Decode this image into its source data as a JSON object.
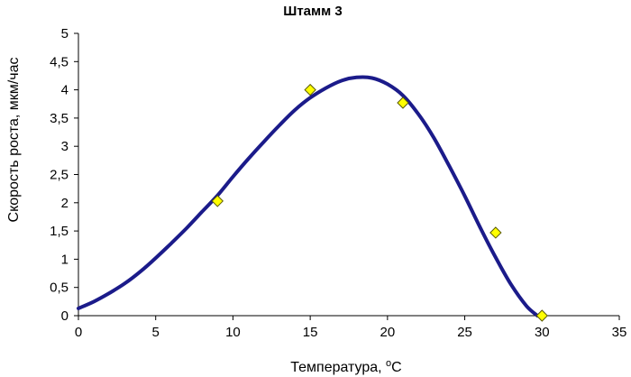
{
  "chart_data": {
    "type": "scatter",
    "title": "Штамм 3",
    "xlabel": "Температура, ",
    "xlabel_sup": "о",
    "xlabel_suffix": "С",
    "ylabel": "Скорость роста, мкм/час",
    "xlim": [
      0,
      35
    ],
    "ylim": [
      0,
      5
    ],
    "x_ticks": [
      {
        "value": 0,
        "label": "0"
      },
      {
        "value": 5,
        "label": "5"
      },
      {
        "value": 10,
        "label": "10"
      },
      {
        "value": 15,
        "label": "15"
      },
      {
        "value": 20,
        "label": "20"
      },
      {
        "value": 25,
        "label": "25"
      },
      {
        "value": 30,
        "label": "30"
      },
      {
        "value": 35,
        "label": "35"
      }
    ],
    "y_ticks": [
      {
        "value": 0,
        "label": "0"
      },
      {
        "value": 0.5,
        "label": "0,5"
      },
      {
        "value": 1,
        "label": "1"
      },
      {
        "value": 1.5,
        "label": "1,5"
      },
      {
        "value": 2,
        "label": "2"
      },
      {
        "value": 2.5,
        "label": "2,5"
      },
      {
        "value": 3,
        "label": "3"
      },
      {
        "value": 3.5,
        "label": "3,5"
      },
      {
        "value": 4,
        "label": "4"
      },
      {
        "value": 4.5,
        "label": "4,5"
      },
      {
        "value": 5,
        "label": "5"
      }
    ],
    "grid": false,
    "legend": "none",
    "points": [
      {
        "x": 9,
        "y": 2.03
      },
      {
        "x": 15,
        "y": 4.0
      },
      {
        "x": 21,
        "y": 3.77
      },
      {
        "x": 27,
        "y": 1.47
      },
      {
        "x": 30,
        "y": 0.0
      }
    ],
    "fit_curve": [
      {
        "x": 0,
        "y": 0.13
      },
      {
        "x": 1,
        "y": 0.25
      },
      {
        "x": 2,
        "y": 0.4
      },
      {
        "x": 3,
        "y": 0.57
      },
      {
        "x": 4,
        "y": 0.78
      },
      {
        "x": 5,
        "y": 1.02
      },
      {
        "x": 6,
        "y": 1.28
      },
      {
        "x": 7,
        "y": 1.55
      },
      {
        "x": 8,
        "y": 1.84
      },
      {
        "x": 9,
        "y": 2.13
      },
      {
        "x": 10,
        "y": 2.46
      },
      {
        "x": 11,
        "y": 2.78
      },
      {
        "x": 12,
        "y": 3.08
      },
      {
        "x": 13,
        "y": 3.37
      },
      {
        "x": 14,
        "y": 3.64
      },
      {
        "x": 15,
        "y": 3.86
      },
      {
        "x": 16,
        "y": 4.03
      },
      {
        "x": 17,
        "y": 4.16
      },
      {
        "x": 18,
        "y": 4.22
      },
      {
        "x": 19,
        "y": 4.21
      },
      {
        "x": 20,
        "y": 4.1
      },
      {
        "x": 21,
        "y": 3.9
      },
      {
        "x": 22,
        "y": 3.57
      },
      {
        "x": 23,
        "y": 3.15
      },
      {
        "x": 24,
        "y": 2.65
      },
      {
        "x": 25,
        "y": 2.12
      },
      {
        "x": 26,
        "y": 1.56
      },
      {
        "x": 27,
        "y": 1.03
      },
      {
        "x": 28,
        "y": 0.55
      },
      {
        "x": 29,
        "y": 0.17
      },
      {
        "x": 29.7,
        "y": 0.0
      }
    ],
    "colors": {
      "curve": "#1b1b8a",
      "marker_fill": "#ffff00",
      "marker_stroke": "#5a5a00",
      "axis": "#000000"
    }
  }
}
